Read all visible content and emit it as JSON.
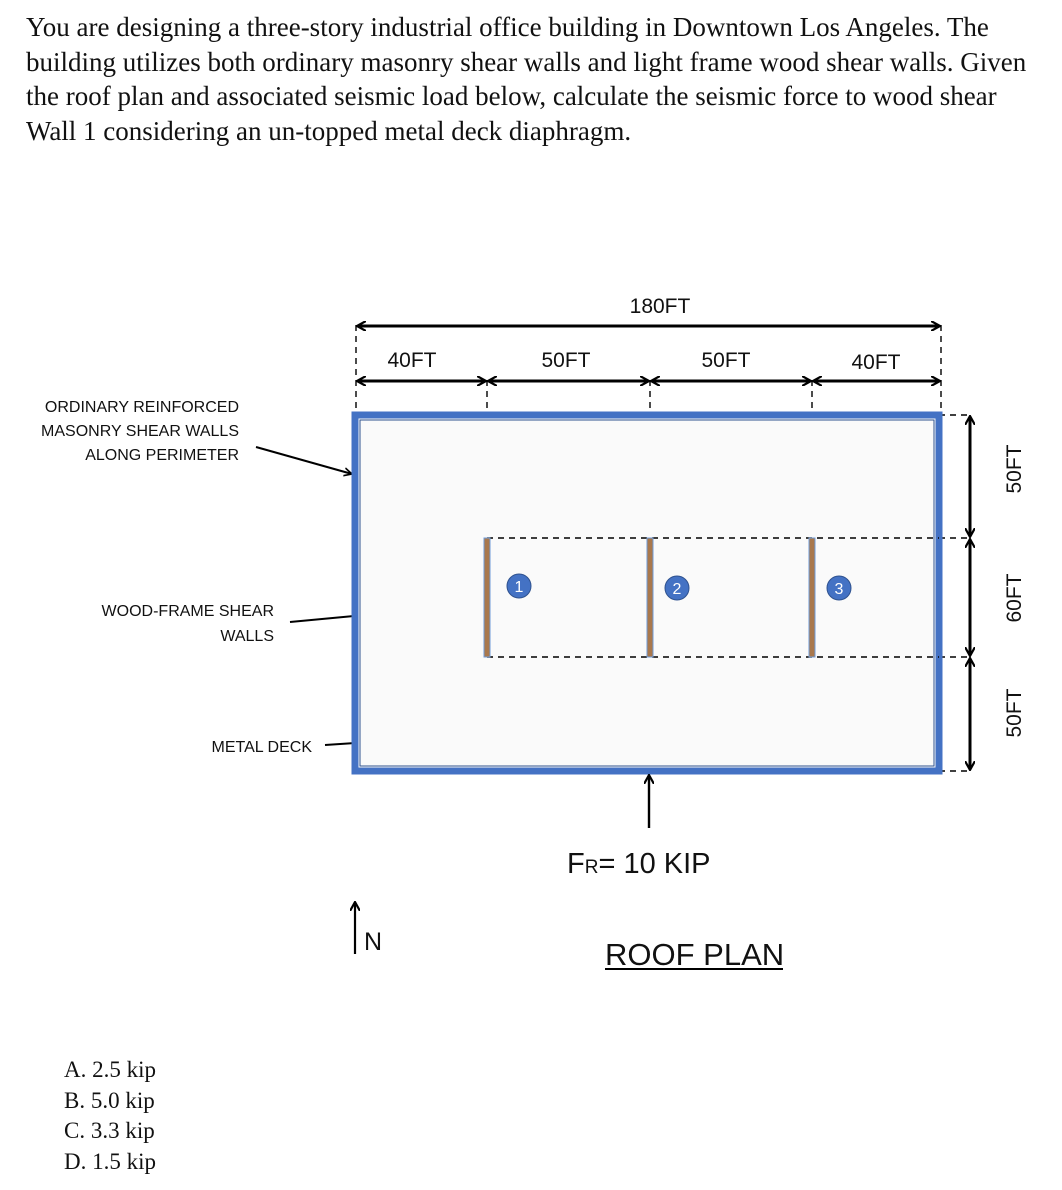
{
  "question": "You are designing a three-story industrial office building in Downtown Los Angeles. The building utilizes both ordinary masonry shear walls and light frame wood shear walls. Given the roof plan and associated seismic load below, calculate the seismic force to wood shear Wall 1 considering an un-topped metal deck diaphragm.",
  "callouts": {
    "masonry": [
      "ORDINARY REINFORCED",
      "MASONRY  SHEAR WALLS",
      "ALONG PERIMETER"
    ],
    "wood": [
      "WOOD-FRAME SHEAR",
      "WALLS"
    ],
    "deck": "METAL DECK"
  },
  "dimensions": {
    "overall": "180FT",
    "bays": [
      "40FT",
      "50FT",
      "50FT",
      "40FT"
    ],
    "vertical": [
      "50FT",
      "60FT",
      "50FT"
    ]
  },
  "walls": [
    "1",
    "2",
    "3"
  ],
  "force": {
    "prefix": "F",
    "subscript": "R",
    "suffix": "= 10 KIP"
  },
  "north": "N",
  "plan_title": "ROOF PLAN",
  "choices": [
    "A.  2.5 kip",
    "B.  5.0 kip",
    "C.  3.3 kip",
    "D.  1.5 kip"
  ],
  "colors": {
    "masonry_wall": "#4472C4",
    "wood_wall": "#A9784D",
    "badge": "#4472C4",
    "deck": "#FAFAFA"
  }
}
